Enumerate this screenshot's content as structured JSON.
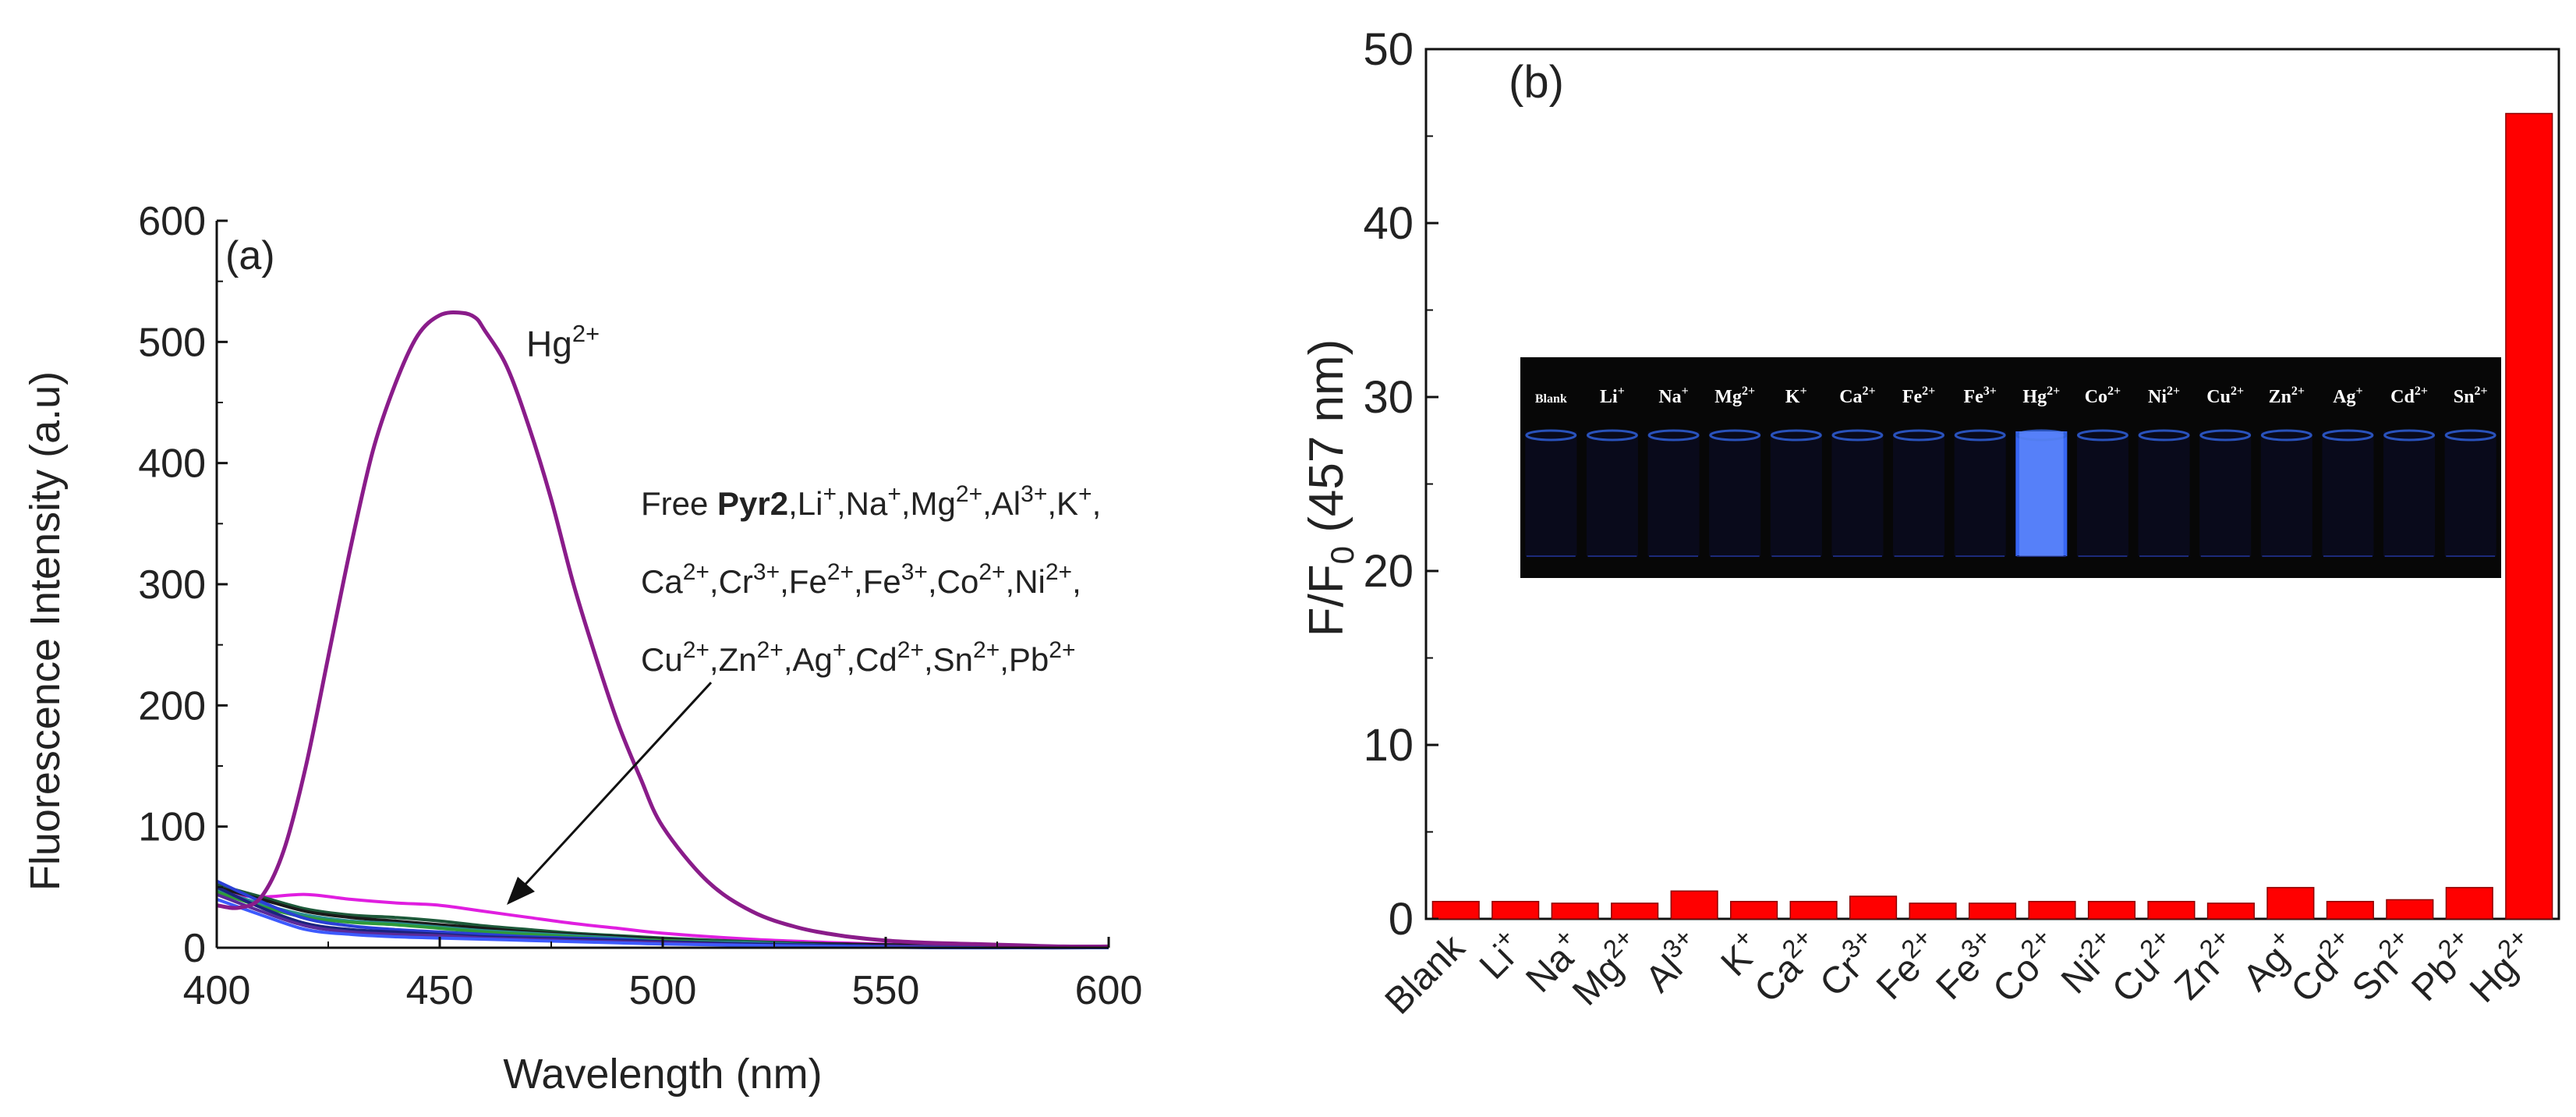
{
  "panel_a_label": "(a)",
  "panel_b_label": "(b)",
  "annotation_a": {
    "hg_base": "Hg",
    "hg_sup": "2+",
    "line1": [
      {
        "t": "Free ",
        "b": false,
        "s": false
      },
      {
        "t": "Pyr2",
        "b": true,
        "s": false
      },
      {
        "t": ",Li",
        "b": false,
        "s": false
      },
      {
        "t": "+",
        "b": false,
        "s": true
      },
      {
        "t": ",Na",
        "b": false,
        "s": false
      },
      {
        "t": "+",
        "b": false,
        "s": true
      },
      {
        "t": ",Mg",
        "b": false,
        "s": false
      },
      {
        "t": "2+",
        "b": false,
        "s": true
      },
      {
        "t": ",Al",
        "b": false,
        "s": false
      },
      {
        "t": "3+",
        "b": false,
        "s": true
      },
      {
        "t": ",K",
        "b": false,
        "s": false
      },
      {
        "t": "+",
        "b": false,
        "s": true
      },
      {
        "t": ",",
        "b": false,
        "s": false
      }
    ],
    "line2": [
      {
        "t": "Ca",
        "b": false,
        "s": false
      },
      {
        "t": "2+",
        "b": false,
        "s": true
      },
      {
        "t": ",Cr",
        "b": false,
        "s": false
      },
      {
        "t": "3+",
        "b": false,
        "s": true
      },
      {
        "t": ",Fe",
        "b": false,
        "s": false
      },
      {
        "t": "2+",
        "b": false,
        "s": true
      },
      {
        "t": ",Fe",
        "b": false,
        "s": false
      },
      {
        "t": "3+",
        "b": false,
        "s": true
      },
      {
        "t": ",Co",
        "b": false,
        "s": false
      },
      {
        "t": "2+",
        "b": false,
        "s": true
      },
      {
        "t": ",Ni",
        "b": false,
        "s": false
      },
      {
        "t": "2+",
        "b": false,
        "s": true
      },
      {
        "t": ",",
        "b": false,
        "s": false
      }
    ],
    "line3": [
      {
        "t": "Cu",
        "b": false,
        "s": false
      },
      {
        "t": "2+",
        "b": false,
        "s": true
      },
      {
        "t": ",Zn",
        "b": false,
        "s": false
      },
      {
        "t": "2+",
        "b": false,
        "s": true
      },
      {
        "t": ",Ag",
        "b": false,
        "s": false
      },
      {
        "t": "+",
        "b": false,
        "s": true
      },
      {
        "t": ",Cd",
        "b": false,
        "s": false
      },
      {
        "t": "2+",
        "b": false,
        "s": true
      },
      {
        "t": ",Sn",
        "b": false,
        "s": false
      },
      {
        "t": "2+",
        "b": false,
        "s": true
      },
      {
        "t": ",Pb",
        "b": false,
        "s": false
      },
      {
        "t": "2+",
        "b": false,
        "s": true
      }
    ]
  },
  "inset_b": {
    "background": "#070707",
    "glow_color": "#3b6cff",
    "labels": [
      {
        "base": "Blank",
        "sup": ""
      },
      {
        "base": "Li",
        "sup": "+"
      },
      {
        "base": "Na",
        "sup": "+"
      },
      {
        "base": "Mg",
        "sup": "2+"
      },
      {
        "base": "K",
        "sup": "+"
      },
      {
        "base": "Ca",
        "sup": "2+"
      },
      {
        "base": "Fe",
        "sup": "2+"
      },
      {
        "base": "Fe",
        "sup": "3+"
      },
      {
        "base": "Hg",
        "sup": "2+"
      },
      {
        "base": "Co",
        "sup": "2+"
      },
      {
        "base": "Ni",
        "sup": "2+"
      },
      {
        "base": "Cu",
        "sup": "2+"
      },
      {
        "base": "Zn",
        "sup": "2+"
      },
      {
        "base": "Ag",
        "sup": "+"
      },
      {
        "base": "Cd",
        "sup": "2+"
      },
      {
        "base": "Sn",
        "sup": "2+"
      }
    ]
  },
  "chart_data": [
    {
      "type": "line",
      "panel": "a",
      "title": "",
      "xlabel": "Wavelength (nm)",
      "ylabel": "Fluorescence Intensity (a.u)",
      "xlim": [
        400,
        600
      ],
      "ylim": [
        0,
        600
      ],
      "xticks": [
        400,
        450,
        500,
        550,
        600
      ],
      "yticks": [
        0,
        100,
        200,
        300,
        400,
        500,
        600
      ],
      "series": [
        {
          "name": "Hg2+",
          "color": "#8a1c8a",
          "x": [
            400,
            405,
            410,
            415,
            420,
            425,
            430,
            435,
            440,
            445,
            450,
            455,
            458,
            460,
            465,
            470,
            475,
            480,
            485,
            490,
            495,
            500,
            510,
            520,
            530,
            540,
            550,
            560,
            570,
            580,
            590,
            600
          ],
          "y": [
            35,
            33,
            42,
            80,
            150,
            240,
            330,
            410,
            465,
            505,
            522,
            524,
            520,
            510,
            480,
            430,
            370,
            300,
            240,
            185,
            140,
            100,
            55,
            30,
            17,
            10,
            6,
            4,
            3,
            2,
            1,
            1
          ]
        },
        {
          "name": "magenta",
          "color": "#e01ee0",
          "x": [
            400,
            410,
            420,
            430,
            440,
            450,
            460,
            470,
            480,
            490,
            500,
            520,
            540,
            560,
            580,
            600
          ],
          "y": [
            45,
            42,
            44,
            40,
            37,
            35,
            30,
            25,
            20,
            16,
            12,
            7,
            4,
            2,
            1,
            0
          ]
        },
        {
          "name": "dark green",
          "color": "#1d5a3a",
          "x": [
            400,
            410,
            420,
            430,
            440,
            450,
            460,
            470,
            480,
            490,
            500,
            520,
            540,
            560,
            580,
            600
          ],
          "y": [
            52,
            42,
            32,
            27,
            25,
            22,
            18,
            15,
            12,
            10,
            8,
            5,
            3,
            2,
            1,
            0
          ]
        },
        {
          "name": "black",
          "color": "#1a1a1a",
          "x": [
            400,
            410,
            420,
            430,
            440,
            450,
            460,
            470,
            480,
            490,
            500,
            520,
            540,
            560,
            580,
            600
          ],
          "y": [
            50,
            40,
            30,
            25,
            22,
            19,
            16,
            13,
            11,
            9,
            7,
            4,
            3,
            2,
            1,
            0
          ]
        },
        {
          "name": "teal",
          "color": "#2a8f8f",
          "x": [
            400,
            410,
            420,
            430,
            440,
            450,
            460,
            470,
            480,
            490,
            500,
            520,
            540,
            560,
            580,
            600
          ],
          "y": [
            48,
            36,
            27,
            22,
            20,
            17,
            14,
            12,
            10,
            8,
            6,
            4,
            2,
            1,
            1,
            0
          ]
        },
        {
          "name": "green",
          "color": "#2f9a3a",
          "x": [
            400,
            410,
            420,
            430,
            440,
            450,
            460,
            470,
            480,
            490,
            500,
            520,
            540,
            560,
            580,
            600
          ],
          "y": [
            46,
            34,
            25,
            21,
            19,
            16,
            13,
            11,
            9,
            7,
            6,
            3,
            2,
            1,
            1,
            0
          ]
        },
        {
          "name": "blue",
          "color": "#2a3fd6",
          "x": [
            400,
            410,
            420,
            430,
            440,
            450,
            460,
            470,
            480,
            490,
            500,
            520,
            540,
            560,
            580,
            600
          ],
          "y": [
            55,
            38,
            24,
            18,
            15,
            13,
            11,
            9,
            8,
            7,
            5,
            3,
            2,
            1,
            1,
            0
          ]
        },
        {
          "name": "navy",
          "color": "#1a237e",
          "x": [
            400,
            410,
            420,
            430,
            440,
            450,
            460,
            470,
            480,
            490,
            500,
            520,
            540,
            560,
            580,
            600
          ],
          "y": [
            50,
            33,
            20,
            15,
            13,
            11,
            9,
            8,
            7,
            6,
            5,
            3,
            2,
            1,
            0,
            0
          ]
        },
        {
          "name": "purple",
          "color": "#5a2a9a",
          "x": [
            400,
            410,
            420,
            430,
            440,
            450,
            460,
            470,
            480,
            490,
            500,
            520,
            540,
            560,
            580,
            600
          ],
          "y": [
            44,
            30,
            18,
            13,
            11,
            10,
            8,
            7,
            6,
            5,
            4,
            2,
            1,
            1,
            0,
            0
          ]
        },
        {
          "name": "royal blue",
          "color": "#3d5afe",
          "x": [
            400,
            410,
            420,
            430,
            440,
            450,
            460,
            470,
            480,
            490,
            500,
            520,
            540,
            560,
            580,
            600
          ],
          "y": [
            40,
            27,
            15,
            11,
            9,
            8,
            7,
            6,
            5,
            4,
            3,
            2,
            1,
            0,
            0,
            0
          ]
        }
      ]
    },
    {
      "type": "bar",
      "panel": "b",
      "title": "",
      "xlabel": "",
      "ylabel": "F/F0 (457 nm)",
      "ylabel_parts": {
        "a": "F/F",
        "sub": "0",
        "b": " (457 nm)"
      },
      "ylim": [
        0,
        50
      ],
      "yticks": [
        0,
        10,
        20,
        30,
        40,
        50
      ],
      "bar_color": "#ff0000",
      "categories": [
        {
          "base": "Blank",
          "sup": ""
        },
        {
          "base": "Li",
          "sup": "+"
        },
        {
          "base": "Na",
          "sup": "+"
        },
        {
          "base": "Mg",
          "sup": "2+"
        },
        {
          "base": "Al",
          "sup": "3+"
        },
        {
          "base": "K",
          "sup": "+"
        },
        {
          "base": "Ca",
          "sup": "2+"
        },
        {
          "base": "Cr",
          "sup": "3+"
        },
        {
          "base": "Fe",
          "sup": "2+"
        },
        {
          "base": "Fe",
          "sup": "3+"
        },
        {
          "base": "Co",
          "sup": "2+"
        },
        {
          "base": "Ni",
          "sup": "2+"
        },
        {
          "base": "Cu",
          "sup": "2+"
        },
        {
          "base": "Zn",
          "sup": "2+"
        },
        {
          "base": "Ag",
          "sup": "+"
        },
        {
          "base": "Cd",
          "sup": "2+"
        },
        {
          "base": "Sn",
          "sup": "2+"
        },
        {
          "base": "Pb",
          "sup": "2+"
        },
        {
          "base": "Hg",
          "sup": "2+"
        }
      ],
      "values": [
        1.0,
        1.0,
        0.9,
        0.9,
        1.6,
        1.0,
        1.0,
        1.3,
        0.9,
        0.9,
        1.0,
        1.0,
        1.0,
        0.9,
        1.8,
        1.0,
        1.1,
        1.8,
        46.3
      ]
    }
  ]
}
